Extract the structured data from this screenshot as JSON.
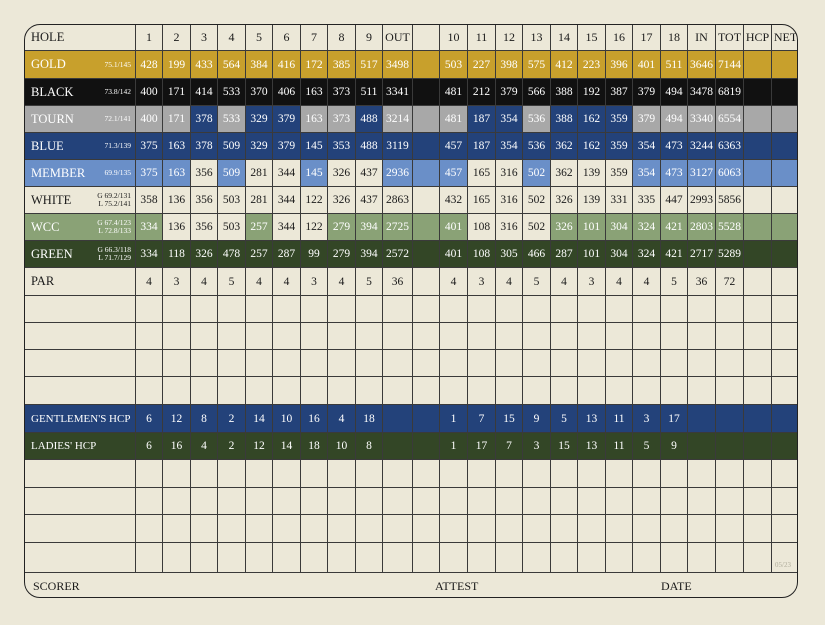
{
  "header": {
    "label": "HOLE",
    "holes": [
      "1",
      "2",
      "3",
      "4",
      "5",
      "6",
      "7",
      "8",
      "9",
      "OUT",
      "",
      "10",
      "11",
      "12",
      "13",
      "14",
      "15",
      "16",
      "17",
      "18",
      "IN",
      "TOT",
      "HCP",
      "NET"
    ]
  },
  "tees": [
    {
      "name": "GOLD",
      "rating": [
        "75.1/145"
      ],
      "bg": "#c8a02c",
      "fg": "#ffffff",
      "values": [
        "428",
        "199",
        "433",
        "564",
        "384",
        "416",
        "172",
        "385",
        "517",
        "3498",
        "",
        "503",
        "227",
        "398",
        "575",
        "412",
        "223",
        "396",
        "401",
        "511",
        "3646",
        "7144",
        "",
        ""
      ]
    },
    {
      "name": "BLACK",
      "rating": [
        "73.8/142"
      ],
      "bg": "#111111",
      "fg": "#ffffff",
      "values": [
        "400",
        "171",
        "414",
        "533",
        "370",
        "406",
        "163",
        "373",
        "511",
        "3341",
        "",
        "481",
        "212",
        "379",
        "566",
        "388",
        "192",
        "387",
        "379",
        "494",
        "3478",
        "6819",
        "",
        ""
      ]
    },
    {
      "name": "TOURN",
      "rating": [
        "72.1/141"
      ],
      "bg": "#a8a8a8",
      "fg": "#ffffff",
      "values": [
        "400",
        "171",
        "378",
        "533",
        "329",
        "379",
        "163",
        "373",
        "488",
        "3214",
        "",
        "481",
        "187",
        "354",
        "536",
        "388",
        "162",
        "359",
        "379",
        "494",
        "3340",
        "6554",
        "",
        ""
      ]
    },
    {
      "name": "BLUE",
      "rating": [
        "71.3/139"
      ],
      "bg": "#23427a",
      "fg": "#ffffff",
      "values": [
        "375",
        "163",
        "378",
        "509",
        "329",
        "379",
        "145",
        "353",
        "488",
        "3119",
        "",
        "457",
        "187",
        "354",
        "536",
        "362",
        "162",
        "359",
        "354",
        "473",
        "3244",
        "6363",
        "",
        ""
      ]
    },
    {
      "name": "MEMBER",
      "rating": [
        "69.9/135"
      ],
      "bg": "#6a8fc8",
      "fg": "#ffffff",
      "values": [
        "375",
        "163",
        "356",
        "509",
        "281",
        "344",
        "145",
        "326",
        "437",
        "2936",
        "",
        "457",
        "165",
        "316",
        "502",
        "362",
        "139",
        "359",
        "354",
        "473",
        "3127",
        "6063",
        "",
        ""
      ]
    },
    {
      "name": "WHITE",
      "rating": [
        "G 69.2/131",
        "L 75.2/141"
      ],
      "bg": "#ece8d8",
      "fg": "#1a1a1a",
      "values": [
        "358",
        "136",
        "356",
        "503",
        "281",
        "344",
        "122",
        "326",
        "437",
        "2863",
        "",
        "432",
        "165",
        "316",
        "502",
        "326",
        "139",
        "331",
        "335",
        "447",
        "2993",
        "5856",
        "",
        ""
      ]
    },
    {
      "name": "WCC",
      "rating": [
        "G 67.4/123",
        "L 72.8/133"
      ],
      "bg": "#8aa276",
      "fg": "#ffffff",
      "values": [
        "334",
        "136",
        "356",
        "503",
        "257",
        "344",
        "122",
        "279",
        "394",
        "2725",
        "",
        "401",
        "108",
        "316",
        "502",
        "326",
        "101",
        "304",
        "324",
        "421",
        "2803",
        "5528",
        "",
        ""
      ]
    },
    {
      "name": "GREEN",
      "rating": [
        "G 66.3/118",
        "L 71.7/129"
      ],
      "bg": "#334626",
      "fg": "#ffffff",
      "values": [
        "334",
        "118",
        "326",
        "478",
        "257",
        "287",
        "99",
        "279",
        "394",
        "2572",
        "",
        "401",
        "108",
        "305",
        "466",
        "287",
        "101",
        "304",
        "324",
        "421",
        "2717",
        "5289",
        "",
        ""
      ]
    }
  ],
  "par": {
    "name": "PAR",
    "values": [
      "4",
      "3",
      "4",
      "5",
      "4",
      "4",
      "3",
      "4",
      "5",
      "36",
      "",
      "4",
      "3",
      "4",
      "5",
      "4",
      "3",
      "4",
      "4",
      "5",
      "36",
      "72",
      "",
      ""
    ]
  },
  "gent_hcp": {
    "name": "GENTLEMEN'S HCP",
    "bg": "#23427a",
    "fg": "#ffffff",
    "values": [
      "6",
      "12",
      "8",
      "2",
      "14",
      "10",
      "16",
      "4",
      "18",
      "",
      "",
      "1",
      "7",
      "15",
      "9",
      "5",
      "13",
      "11",
      "3",
      "17",
      "",
      "",
      "",
      ""
    ]
  },
  "ladies_hcp": {
    "name": "LADIES' HCP",
    "bg": "#334626",
    "fg": "#ffffff",
    "values": [
      "6",
      "16",
      "4",
      "2",
      "12",
      "14",
      "18",
      "10",
      "8",
      "",
      "",
      "1",
      "17",
      "7",
      "3",
      "15",
      "13",
      "11",
      "5",
      "9",
      "",
      "",
      "",
      ""
    ]
  },
  "footer": {
    "scorer": "SCORER",
    "attest": "ATTEST",
    "date": "DATE",
    "code": "05/23"
  },
  "colors": {
    "background": "#ece8d8",
    "line": "#3a3a3a",
    "white_cell": "#ece8d8",
    "blue_alt": "#23427a",
    "member_alt": "#6a8fc8",
    "wcc_alt": "#8aa276",
    "tourn_alt": "#a8a8a8"
  }
}
